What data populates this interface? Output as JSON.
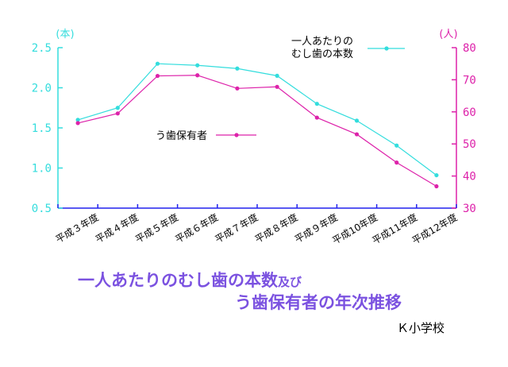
{
  "title": {
    "line1_main": "一人あたりのむし歯の本数",
    "line1_suffix": "及び",
    "line2": "う歯保有者の年次推移"
  },
  "source": "Ｋ小学校",
  "colors": {
    "cavities_per_person": "#33dddd",
    "children_with_decay": "#dd22aa",
    "title": "#7b52e0",
    "axis_left": "#33dddd",
    "axis_right": "#dd22aa"
  },
  "chart_data": {
    "type": "line",
    "categories": [
      "平成３年度",
      "平成４年度",
      "平成５年度",
      "平成６年度",
      "平成７年度",
      "平成８年度",
      "平成９年度",
      "平成10年度",
      "平成11年度",
      "平成12年度"
    ],
    "series": [
      {
        "name": "一人あたりの\nむし歯の本数",
        "axis": "left",
        "color": "#33dddd",
        "values": [
          1.6,
          1.75,
          2.3,
          2.28,
          2.24,
          2.15,
          1.8,
          1.59,
          1.28,
          0.91
        ]
      },
      {
        "name": "う歯保有者",
        "axis": "right",
        "color": "#dd22aa",
        "values": [
          56.5,
          59.5,
          71.2,
          71.4,
          67.3,
          67.8,
          58.2,
          53.0,
          44.2,
          36.8
        ]
      }
    ],
    "y_left": {
      "unit": "(本)",
      "min": 0.5,
      "max": 2.5,
      "ticks": [
        "0.5",
        "1.0",
        "1.5",
        "2.0",
        "2.5"
      ]
    },
    "y_right": {
      "unit": "(人)",
      "min": 30,
      "max": 80,
      "ticks": [
        "30",
        "40",
        "50",
        "60",
        "70",
        "80"
      ]
    },
    "legend": [
      "一人あたりの\nむし歯の本数",
      "う歯保有者"
    ],
    "grid": false
  }
}
